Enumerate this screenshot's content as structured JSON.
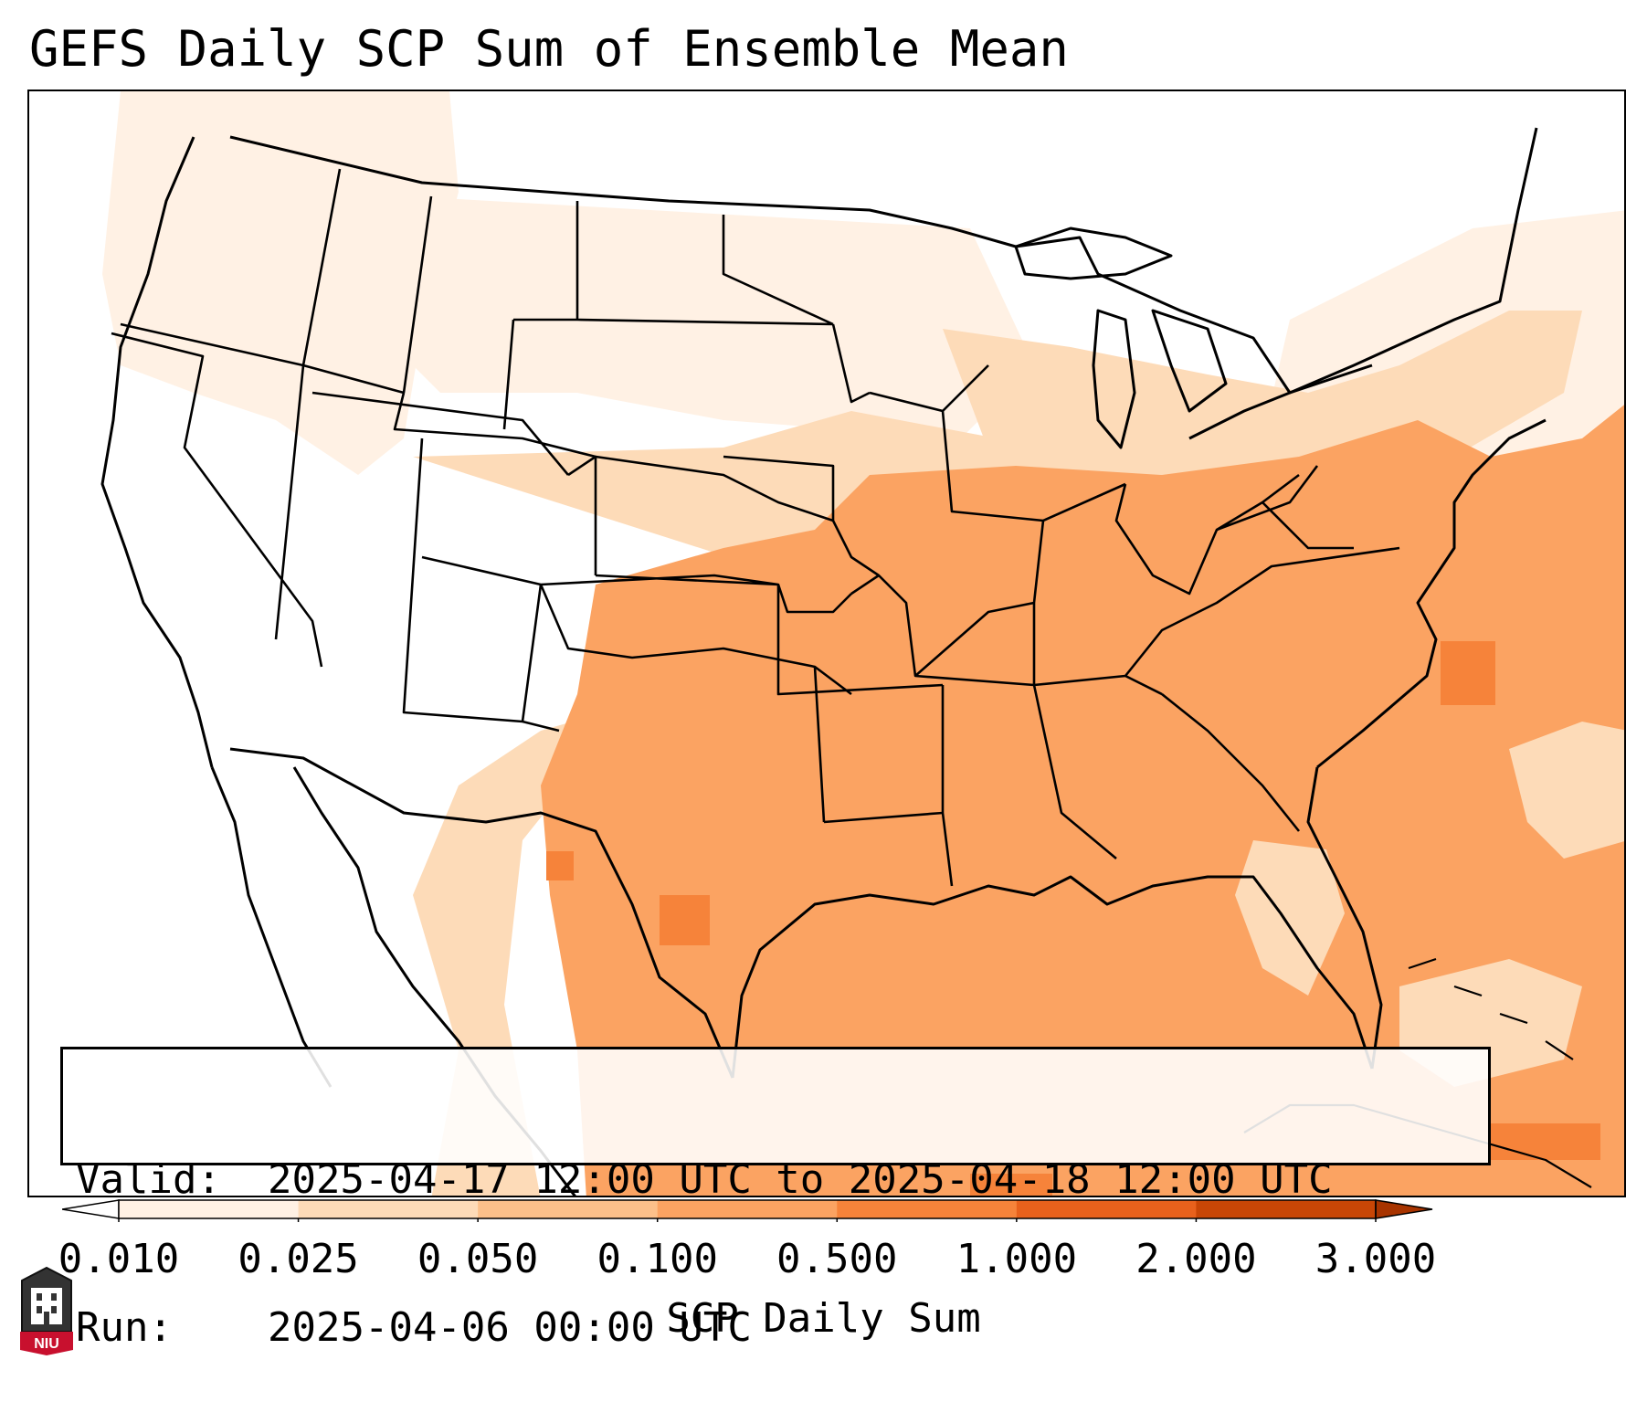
{
  "title": "GEFS Daily SCP Sum of Ensemble Mean",
  "info_box": {
    "valid_label": "Valid:",
    "valid_value": "2025-04-17 12:00 UTC to 2025-04-18 12:00 UTC",
    "run_label": "Run:",
    "run_value": "2025-04-06 00:00 UTC"
  },
  "colorbar": {
    "label": "SCP Daily Sum",
    "ticks": [
      "0.010",
      "0.025",
      "0.050",
      "0.100",
      "0.500",
      "1.000",
      "2.000",
      "3.000"
    ],
    "colors": [
      "#fff1e4",
      "#fddbb8",
      "#fcc08a",
      "#fba362",
      "#f6833a",
      "#e8611c",
      "#c84606"
    ],
    "extend": "both"
  },
  "map": {
    "region": "CONUS",
    "fill_colors": {
      "faint": "#fff1e4",
      "light": "#fddbb8",
      "medium": "#fba362",
      "high": "#f6833a"
    }
  },
  "logo": {
    "text": "NIU",
    "color": "#c8102e"
  }
}
